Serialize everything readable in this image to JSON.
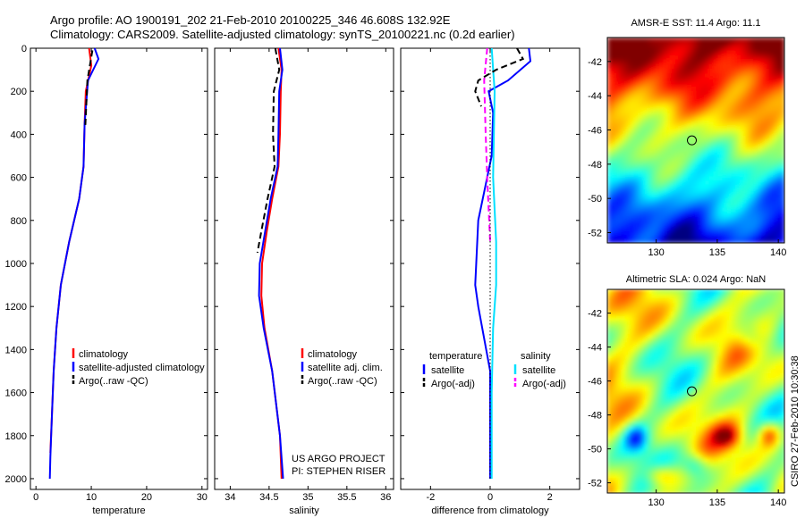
{
  "header": {
    "line1": "Argo profile: AO 1900191_202 21-Feb-2010 20100225_346 46.608S 132.92E",
    "line2": "Climatology: CARS2009. Satellite-adjusted climatology: synTS_20100221.nc (0.2d earlier)"
  },
  "credit": "CSIRO 27-Feb-2010 10:30:38",
  "colors": {
    "climatology": "#ff0000",
    "satellite": "#0000ff",
    "argo": "#000000",
    "temp_sat": "#00e0ff",
    "argo_adj_sal": "#ff00ff"
  },
  "chart_data": [
    {
      "id": "temperature",
      "type": "line",
      "xlabel": "temperature",
      "xlim": [
        -1,
        31
      ],
      "ylim": [
        0,
        2050
      ],
      "y_inverted": true,
      "xticks": [
        0,
        10,
        20,
        30
      ],
      "xtick_labels": [
        "0",
        "10",
        "20",
        "30"
      ],
      "yticks": [
        0,
        200,
        400,
        600,
        800,
        1000,
        1200,
        1400,
        1600,
        1800,
        2000
      ],
      "ytick_labels": [
        "0",
        "200",
        "400",
        "600",
        "800",
        "1000",
        "1200",
        "1400",
        "1600",
        "1800",
        "2000"
      ],
      "series": [
        {
          "name": "climatology",
          "style": "solid",
          "x": [
            9.6,
            10.0,
            9.0,
            8.8,
            8.6,
            7.8,
            6.0,
            4.5,
            3.7,
            3.2,
            2.9,
            2.6
          ],
          "y": [
            0,
            80,
            200,
            350,
            550,
            700,
            900,
            1100,
            1300,
            1500,
            1700,
            1880
          ]
        },
        {
          "name": "satellite-adjusted climatology",
          "style": "solid",
          "x": [
            10.6,
            11.3,
            9.4,
            8.8,
            8.6,
            7.8,
            6.0,
            4.5,
            3.7,
            3.2,
            2.9,
            2.6,
            2.5
          ],
          "y": [
            0,
            50,
            150,
            350,
            550,
            700,
            900,
            1100,
            1300,
            1500,
            1700,
            1900,
            2000
          ]
        },
        {
          "name": "Argo(..raw -QC)",
          "style": "dashed",
          "x": [
            10.2,
            9.3,
            8.9
          ],
          "y": [
            10,
            150,
            370
          ]
        }
      ],
      "legend": [
        "climatology",
        "satellite-adjusted climatology",
        "Argo(..raw -QC)"
      ]
    },
    {
      "id": "salinity",
      "type": "line",
      "xlabel": "salinity",
      "xlim": [
        33.8,
        36.1
      ],
      "ylim": [
        0,
        2050
      ],
      "y_inverted": true,
      "xticks": [
        34,
        34.5,
        35,
        35.5,
        36
      ],
      "xtick_labels": [
        "34",
        "34.5",
        "35",
        "35.5",
        "36"
      ],
      "series": [
        {
          "name": "climatology",
          "style": "solid",
          "x": [
            34.62,
            34.66,
            34.65,
            34.64,
            34.62,
            34.54,
            34.47,
            34.41,
            34.4,
            34.44,
            34.54,
            34.64,
            34.66
          ],
          "y": [
            0,
            100,
            200,
            400,
            550,
            700,
            850,
            1000,
            1150,
            1300,
            1500,
            1800,
            2000
          ]
        },
        {
          "name": "satellite adj. clim.",
          "style": "solid",
          "x": [
            34.64,
            34.67,
            34.63,
            34.62,
            34.61,
            34.52,
            34.45,
            34.38,
            34.37,
            34.43,
            34.54,
            34.64,
            34.68
          ],
          "y": [
            0,
            100,
            200,
            400,
            550,
            700,
            850,
            1000,
            1150,
            1300,
            1500,
            1800,
            2000
          ]
        },
        {
          "name": "Argo(..raw -QC)",
          "style": "dashed",
          "x": [
            34.58,
            34.63,
            34.56,
            34.55,
            34.57,
            34.48,
            34.4,
            34.35
          ],
          "y": [
            0,
            100,
            200,
            400,
            550,
            700,
            850,
            950
          ]
        }
      ],
      "legend": [
        "climatology",
        "satellite adj. clim.",
        "Argo(..raw -QC)"
      ],
      "annotations": [
        "US ARGO PROJECT",
        "PI: STEPHEN RISER"
      ]
    },
    {
      "id": "difference",
      "type": "line",
      "xlabel": "difference from climatology",
      "xlim": [
        -3,
        3
      ],
      "ylim": [
        0,
        2050
      ],
      "y_inverted": true,
      "xticks": [
        -2,
        0,
        2
      ],
      "xtick_labels": [
        "-2",
        "0",
        "2"
      ],
      "series": [
        {
          "name": "temperature satellite",
          "style": "solid",
          "color": "#0000ff",
          "x": [
            1.3,
            1.35,
            0.6,
            -0.05,
            0.1,
            0.05,
            -0.1,
            -0.4,
            -0.5,
            -0.4,
            0.0,
            0.0
          ],
          "y": [
            0,
            60,
            150,
            200,
            300,
            500,
            600,
            800,
            1100,
            1200,
            1500,
            2000
          ]
        },
        {
          "name": "salinity satellite",
          "style": "solid",
          "color": "#00e0ff",
          "x": [
            0.05,
            0.15,
            0.1,
            0.2,
            0.2,
            0.1,
            0.05,
            0.05
          ],
          "y": [
            0,
            200,
            600,
            900,
            1100,
            1300,
            1600,
            2000
          ]
        },
        {
          "name": "temperature Argo(-adj)",
          "style": "dashed",
          "color": "#000000",
          "x": [
            0.9,
            1.1,
            0.2,
            -0.4,
            -0.5,
            -0.3
          ],
          "y": [
            0,
            50,
            100,
            150,
            200,
            270
          ]
        },
        {
          "name": "salinity Argo(-adj)",
          "style": "dashed",
          "color": "#ff00ff",
          "x": [
            -0.1,
            -0.2,
            -0.15,
            -0.1,
            0.0
          ],
          "y": [
            0,
            150,
            400,
            600,
            900
          ]
        },
        {
          "name": "zero line",
          "style": "dotted",
          "color": "#000000",
          "x": [
            0,
            0
          ],
          "y": [
            0,
            2000
          ]
        }
      ],
      "legend_headers": [
        "temperature",
        "salinity"
      ],
      "legend": [
        "satellite",
        "Argo(-adj)",
        "satellite",
        "Argo(-adj)"
      ]
    },
    {
      "id": "sst_map",
      "type": "heatmap",
      "title": "AMSR-E SST: 11.4 Argo: 11.1",
      "xlim": [
        126,
        140.5
      ],
      "ylim": [
        -52.6,
        -40.6
      ],
      "xticks": [
        130,
        135,
        140
      ],
      "xtick_labels": [
        "130",
        "135",
        "140"
      ],
      "yticks": [
        -42,
        -44,
        -46,
        -48,
        -50,
        -52
      ],
      "ytick_labels": [
        "-42",
        "-44",
        "-46",
        "-48",
        "-50",
        "-52"
      ],
      "marker": {
        "lon": 132.92,
        "lat": -46.608
      }
    },
    {
      "id": "sla_map",
      "type": "heatmap",
      "title": "Altimetric SLA: 0.024 Argo: NaN",
      "xlim": [
        126,
        140.5
      ],
      "ylim": [
        -52.6,
        -40.6
      ],
      "xticks": [
        130,
        135,
        140
      ],
      "xtick_labels": [
        "130",
        "135",
        "140"
      ],
      "yticks": [
        -42,
        -44,
        -46,
        -48,
        -50,
        -52
      ],
      "ytick_labels": [
        "-42",
        "-44",
        "-46",
        "-48",
        "-50",
        "-52"
      ],
      "marker": {
        "lon": 132.92,
        "lat": -46.608
      }
    }
  ]
}
